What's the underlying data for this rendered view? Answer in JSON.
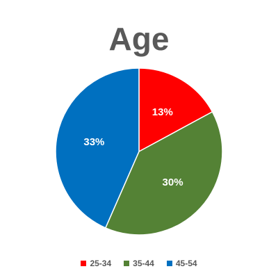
{
  "chart_data": {
    "type": "pie",
    "title": "Age",
    "legend_position": "bottom",
    "slices": [
      {
        "name": "25-34",
        "label": "13%",
        "value": 13,
        "color": "#ff0000"
      },
      {
        "name": "35-44",
        "label": "30%",
        "value": 30,
        "color": "#548235"
      },
      {
        "name": "45-54",
        "label": "33%",
        "value": 33,
        "color": "#0070c0"
      }
    ]
  }
}
